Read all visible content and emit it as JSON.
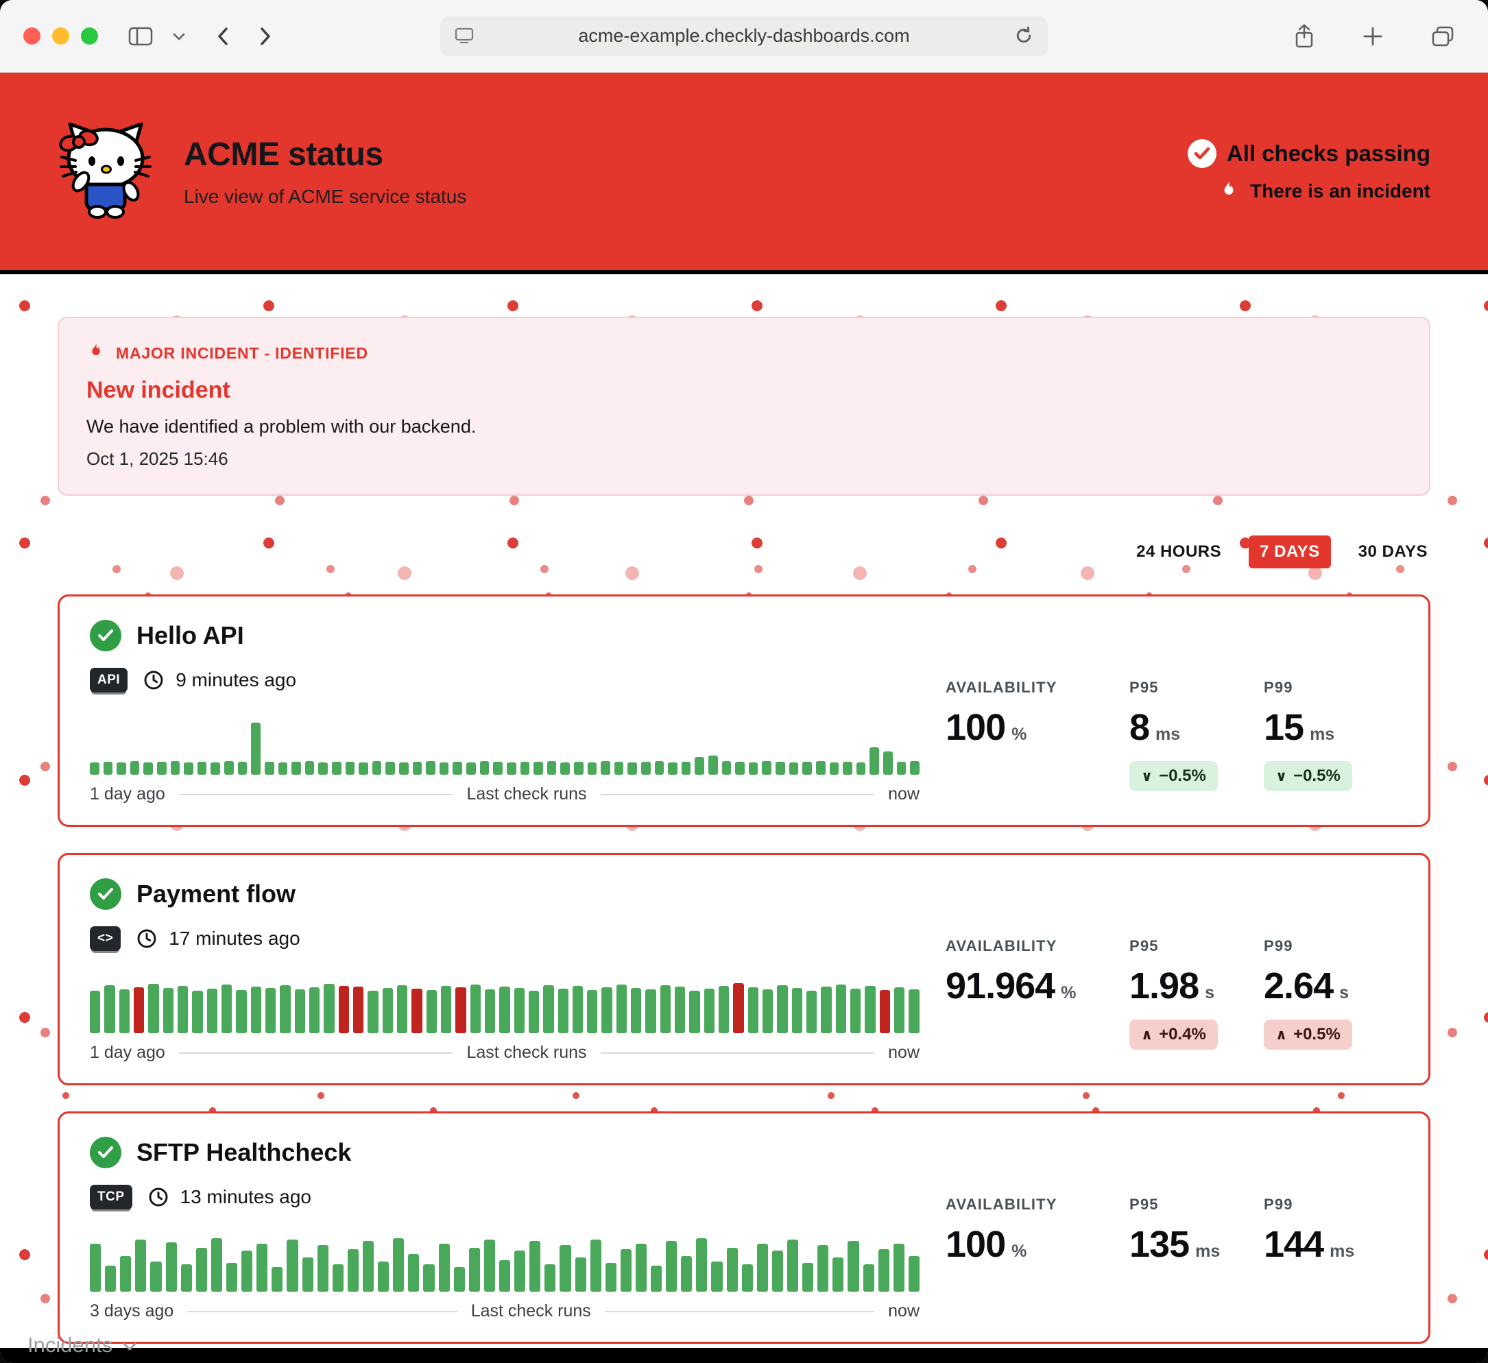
{
  "browser": {
    "url": "acme-example.checkly-dashboards.com"
  },
  "colors": {
    "brand_red": "#e3362c",
    "ok_green": "#2f9e44",
    "bar_green": "#4aa85a",
    "bar_red": "#bf241f",
    "delta_green_bg": "#d9f2de",
    "delta_red_bg": "#f6cfcb",
    "incident_bg": "#fcedf0"
  },
  "header": {
    "title": "ACME status",
    "subtitle": "Live view of ACME service status",
    "status_text": "All checks passing",
    "incident_text": "There is an incident"
  },
  "incident_banner": {
    "kicker": "MAJOR INCIDENT - IDENTIFIED",
    "title": "New incident",
    "message": "We have identified a problem with our backend.",
    "timestamp": "Oct 1, 2025 15:46"
  },
  "range_selector": {
    "options": [
      {
        "label": "24 HOURS",
        "selected": false
      },
      {
        "label": "7 DAYS",
        "selected": true
      },
      {
        "label": "30 DAYS",
        "selected": false
      }
    ]
  },
  "checks": [
    {
      "name": "Hello API",
      "type_badge": "API",
      "last_run": "9 minutes ago",
      "axis_left": "1 day ago",
      "axis_center": "Last check runs",
      "axis_right": "now",
      "stats": {
        "availability_label": "AVAILABILITY",
        "availability_value": "100",
        "availability_unit": "%",
        "p95_label": "P95",
        "p95_value": "8",
        "p95_unit": "ms",
        "p95_delta": {
          "text": "−0.5%",
          "direction": "down"
        },
        "p99_label": "P99",
        "p99_value": "15",
        "p99_unit": "ms",
        "p99_delta": {
          "text": "−0.5%",
          "direction": "down"
        }
      }
    },
    {
      "name": "Payment flow",
      "type_badge": "<>",
      "last_run": "17 minutes ago",
      "axis_left": "1 day ago",
      "axis_center": "Last check runs",
      "axis_right": "now",
      "stats": {
        "availability_label": "AVAILABILITY",
        "availability_value": "91.964",
        "availability_unit": "%",
        "p95_label": "P95",
        "p95_value": "1.98",
        "p95_unit": "s",
        "p95_delta": {
          "text": "+0.4%",
          "direction": "up"
        },
        "p99_label": "P99",
        "p99_value": "2.64",
        "p99_unit": "s",
        "p99_delta": {
          "text": "+0.5%",
          "direction": "up"
        }
      }
    },
    {
      "name": "SFTP Healthcheck",
      "type_badge": "TCP",
      "last_run": "13 minutes ago",
      "axis_left": "3 days ago",
      "axis_center": "Last check runs",
      "axis_right": "now",
      "stats": {
        "availability_label": "AVAILABILITY",
        "availability_value": "100",
        "availability_unit": "%",
        "p95_label": "P95",
        "p95_value": "135",
        "p95_unit": "ms",
        "p99_label": "P99",
        "p99_value": "144",
        "p99_unit": "ms"
      }
    }
  ],
  "footer": {
    "incidents_label": "Incidents"
  },
  "chart_data": [
    {
      "type": "bar",
      "title": "Hello API - Last check runs",
      "x_left_label": "1 day ago",
      "x_right_label": "now",
      "legend": "green = passing run, one tall spike = slow run",
      "values": [
        18,
        19,
        18,
        20,
        18,
        19,
        20,
        18,
        19,
        18,
        20,
        19,
        76,
        19,
        18,
        19,
        20,
        18,
        19,
        19,
        18,
        20,
        19,
        18,
        19,
        20,
        18,
        19,
        18,
        20,
        19,
        18,
        19,
        19,
        20,
        18,
        19,
        18,
        20,
        19,
        18,
        19,
        20,
        18,
        19,
        26,
        28,
        20,
        19,
        18,
        20,
        19,
        18,
        19,
        20,
        18,
        19,
        18,
        40,
        34,
        19,
        20
      ],
      "fail_indices": []
    },
    {
      "type": "bar",
      "title": "Payment flow - Last check runs",
      "x_left_label": "1 day ago",
      "x_right_label": "now",
      "legend": "green = passing run, red = failing run",
      "values": [
        62,
        70,
        64,
        67,
        72,
        66,
        69,
        62,
        65,
        71,
        63,
        68,
        66,
        70,
        64,
        67,
        72,
        69,
        68,
        62,
        66,
        70,
        65,
        63,
        69,
        67,
        71,
        64,
        68,
        66,
        62,
        70,
        65,
        69,
        63,
        67,
        71,
        66,
        64,
        70,
        68,
        62,
        65,
        69,
        73,
        67,
        64,
        70,
        66,
        62,
        68,
        71,
        65,
        69,
        63,
        67,
        64
      ],
      "fail_indices": [
        3,
        17,
        18,
        22,
        25,
        44,
        54
      ]
    },
    {
      "type": "bar",
      "title": "SFTP Healthcheck - Last check runs",
      "x_left_label": "3 days ago",
      "x_right_label": "now",
      "legend": "green = passing run",
      "values": [
        70,
        38,
        52,
        76,
        44,
        72,
        40,
        64,
        78,
        42,
        60,
        70,
        36,
        76,
        50,
        68,
        40,
        62,
        74,
        44,
        78,
        55,
        40,
        70,
        36,
        64,
        76,
        46,
        60,
        74,
        40,
        68,
        50,
        76,
        42,
        62,
        70,
        38,
        74,
        52,
        78,
        44,
        64,
        40,
        70,
        60,
        76,
        42,
        68,
        50,
        74,
        40,
        62,
        70,
        52
      ],
      "fail_indices": []
    }
  ]
}
